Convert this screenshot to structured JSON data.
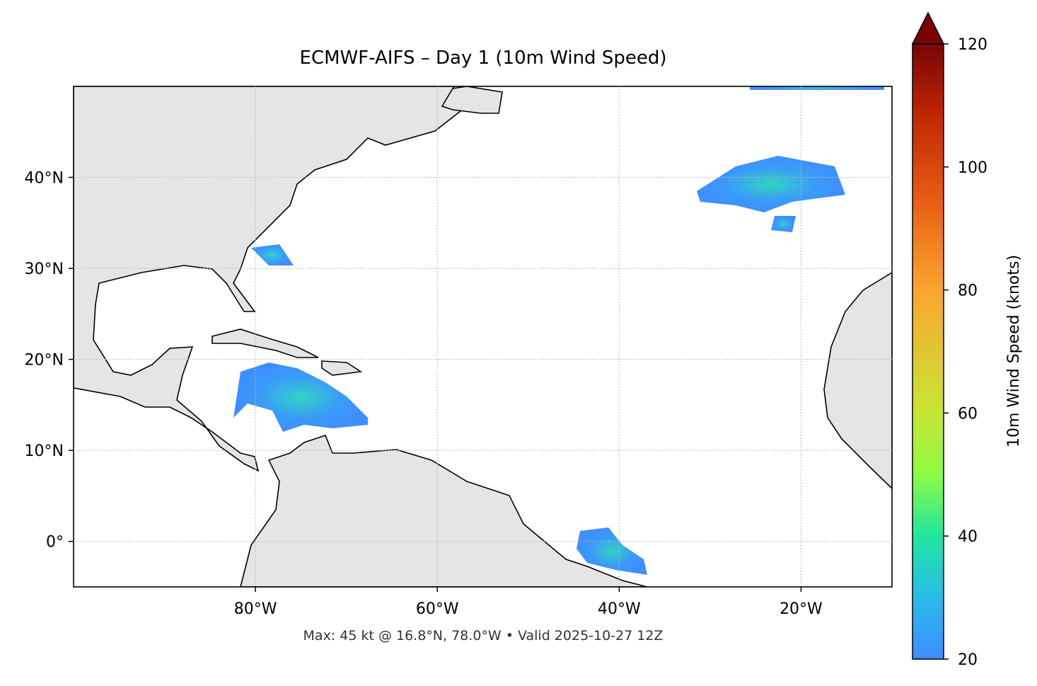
{
  "chart_data": {
    "type": "map",
    "title": "ECMWF-AIFS – Day 1 (10m Wind Speed)",
    "footer": "Max: 45 kt @ 16.8°N, 78.0°W • Valid 2025-10-27 12Z",
    "xlim": [
      -100,
      -10
    ],
    "ylim": [
      -5,
      50
    ],
    "xticks": [
      {
        "value": -80,
        "label": "80°W"
      },
      {
        "value": -60,
        "label": "60°W"
      },
      {
        "value": -40,
        "label": "40°W"
      },
      {
        "value": -20,
        "label": "20°W"
      }
    ],
    "yticks": [
      {
        "value": 0,
        "label": "0°"
      },
      {
        "value": 10,
        "label": "10°N"
      },
      {
        "value": 20,
        "label": "20°N"
      },
      {
        "value": 30,
        "label": "30°N"
      },
      {
        "value": 40,
        "label": "40°N"
      }
    ],
    "grid": true,
    "colorbar": {
      "label": "10m Wind Speed (knots)",
      "lim": [
        20,
        120
      ],
      "ticks": [
        20,
        40,
        60,
        80,
        100,
        120
      ]
    }
  }
}
